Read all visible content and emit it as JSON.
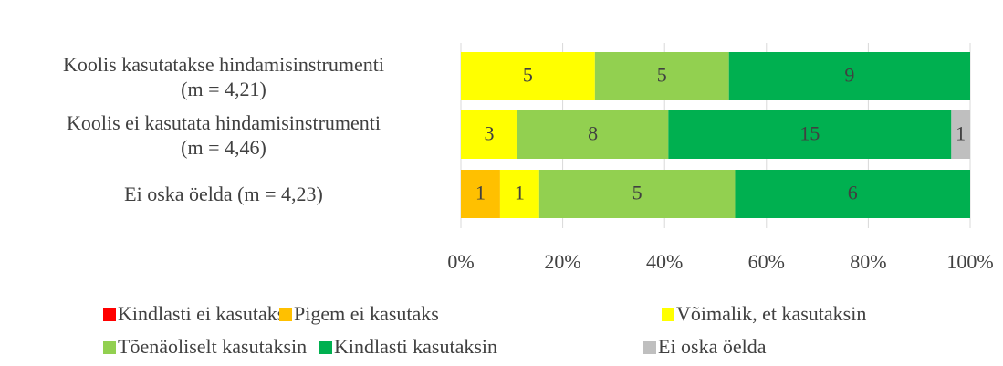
{
  "chart_data": {
    "type": "bar",
    "orientation": "horizontal",
    "stack": "percent",
    "categories": [
      "Koolis kasutatakse hindamisinstrumenti\n(m = 4,21)",
      "Koolis ei kasutata hindamisinstrumenti\n(m = 4,46)",
      "Ei oska öelda (m = 4,23)"
    ],
    "series": [
      {
        "name": "Kindlasti ei kasutaks",
        "color": "#ff0000",
        "values": [
          0,
          0,
          0
        ]
      },
      {
        "name": "Pigem ei kasutaks",
        "color": "#ffc000",
        "values": [
          0,
          0,
          1
        ]
      },
      {
        "name": "Võimalik, et kasutaksin",
        "color": "#ffff00",
        "values": [
          5,
          3,
          1
        ]
      },
      {
        "name": "Tõenäoliselt kasutaksin",
        "color": "#92d050",
        "values": [
          5,
          8,
          5
        ]
      },
      {
        "name": "Kindlasti kasutaksin",
        "color": "#00b050",
        "values": [
          9,
          15,
          6
        ]
      },
      {
        "name": "Ei oska öelda",
        "color": "#bfbfbf",
        "values": [
          0,
          1,
          0
        ]
      }
    ],
    "xlim": [
      0,
      100
    ],
    "xticks": [
      {
        "value": 0,
        "label": "0%"
      },
      {
        "value": 20,
        "label": "20%"
      },
      {
        "value": 40,
        "label": "40%"
      },
      {
        "value": 60,
        "label": "60%"
      },
      {
        "value": 80,
        "label": "80%"
      },
      {
        "value": 100,
        "label": "100%"
      }
    ],
    "grid": true,
    "legend": "bottom"
  }
}
